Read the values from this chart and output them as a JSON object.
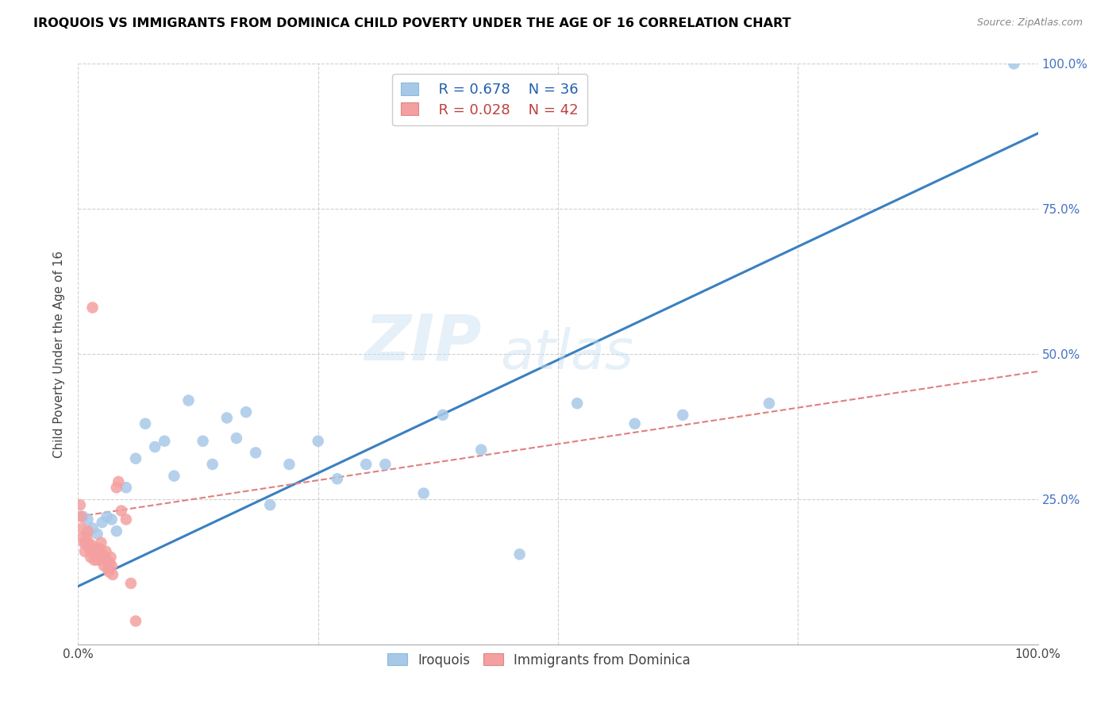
{
  "title": "IROQUOIS VS IMMIGRANTS FROM DOMINICA CHILD POVERTY UNDER THE AGE OF 16 CORRELATION CHART",
  "source": "Source: ZipAtlas.com",
  "ylabel": "Child Poverty Under the Age of 16",
  "xlim": [
    0,
    1.0
  ],
  "ylim": [
    0,
    1.0
  ],
  "watermark": "ZIPatlas",
  "legend_blue_label": "Iroquois",
  "legend_pink_label": "Immigrants from Dominica",
  "legend_r_blue": "R = 0.678",
  "legend_n_blue": "N = 36",
  "legend_r_pink": "R = 0.028",
  "legend_n_pink": "N = 42",
  "blue_color": "#a8c8e8",
  "pink_color": "#f4a0a0",
  "line_blue_color": "#3a80c0",
  "line_pink_color": "#e08080",
  "grid_color": "#d0d0d0",
  "blue_scatter_x": [
    0.005,
    0.01,
    0.015,
    0.02,
    0.025,
    0.03,
    0.035,
    0.04,
    0.05,
    0.06,
    0.07,
    0.08,
    0.09,
    0.1,
    0.115,
    0.13,
    0.14,
    0.155,
    0.165,
    0.175,
    0.185,
    0.2,
    0.22,
    0.25,
    0.27,
    0.3,
    0.32,
    0.36,
    0.38,
    0.42,
    0.46,
    0.52,
    0.58,
    0.63,
    0.72,
    0.975
  ],
  "blue_scatter_y": [
    0.22,
    0.215,
    0.2,
    0.19,
    0.21,
    0.22,
    0.215,
    0.195,
    0.27,
    0.32,
    0.38,
    0.34,
    0.35,
    0.29,
    0.42,
    0.35,
    0.31,
    0.39,
    0.355,
    0.4,
    0.33,
    0.24,
    0.31,
    0.35,
    0.285,
    0.31,
    0.31,
    0.26,
    0.395,
    0.335,
    0.155,
    0.415,
    0.38,
    0.395,
    0.415,
    1.0
  ],
  "pink_scatter_x": [
    0.002,
    0.003,
    0.004,
    0.005,
    0.006,
    0.007,
    0.008,
    0.009,
    0.01,
    0.011,
    0.012,
    0.013,
    0.014,
    0.015,
    0.016,
    0.017,
    0.018,
    0.019,
    0.02,
    0.021,
    0.022,
    0.023,
    0.024,
    0.025,
    0.026,
    0.027,
    0.028,
    0.029,
    0.03,
    0.031,
    0.032,
    0.033,
    0.034,
    0.035,
    0.036,
    0.04,
    0.042,
    0.045,
    0.05,
    0.055,
    0.06,
    0.015
  ],
  "pink_scatter_y": [
    0.24,
    0.22,
    0.2,
    0.185,
    0.175,
    0.16,
    0.175,
    0.185,
    0.195,
    0.175,
    0.165,
    0.15,
    0.16,
    0.17,
    0.155,
    0.145,
    0.155,
    0.165,
    0.155,
    0.145,
    0.165,
    0.16,
    0.175,
    0.155,
    0.145,
    0.135,
    0.15,
    0.16,
    0.145,
    0.13,
    0.125,
    0.14,
    0.15,
    0.135,
    0.12,
    0.27,
    0.28,
    0.23,
    0.215,
    0.105,
    0.04,
    0.58
  ],
  "blue_line_x": [
    0.0,
    1.0
  ],
  "blue_line_y": [
    0.1,
    0.88
  ],
  "pink_line_x": [
    0.0,
    1.0
  ],
  "pink_line_y": [
    0.22,
    0.47
  ]
}
